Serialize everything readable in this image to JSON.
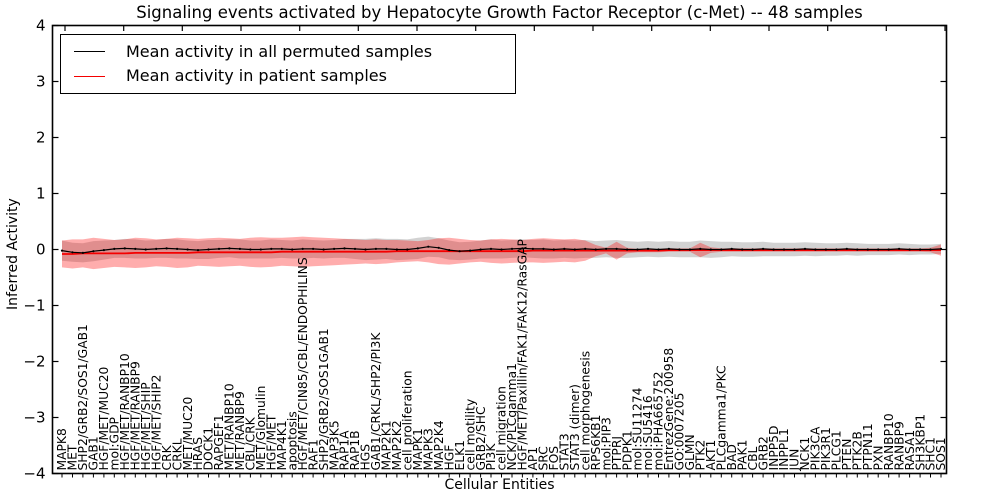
{
  "chart_data": {
    "type": "line",
    "title": "Signaling events activated by Hepatocyte Growth Factor Receptor (c-Met) -- 48 samples",
    "xlabel": "Cellular Entities",
    "ylabel": "Inferred Activity",
    "ylim": [
      -4,
      4
    ],
    "yticks": [
      4,
      3,
      2,
      1,
      0,
      -1,
      -2,
      -3,
      -4
    ],
    "grid": false,
    "legend_position": "upper left",
    "categories": [
      "MAPK8",
      "MET",
      "SHP2/GRB2/SOS1/GAB1",
      "GAB1",
      "HGF/MET/MUC20",
      "mol:GDP",
      "HGF/MET/RANBP10",
      "HGF/MET/RANBP9",
      "HGF/MET/SHIP",
      "HGF/MET/SHIP2",
      "CRK",
      "CRKL",
      "MET/MUC20",
      "HRAS",
      "DOCK1",
      "RAPGEF1",
      "MET/RANBP10",
      "MET/RANBP9",
      "CBL/CRK",
      "MET/Glomulin",
      "HGF/MET",
      "MAP4K1",
      "apoptosis",
      "HGF/MET/CIN85/CBL/ENDOPHILINS",
      "RAF1",
      "SHP2/GRB2/SOS1GAB1",
      "MAP3K5",
      "RAP1A",
      "RAP1B",
      "HGS",
      "GAB1/CRKL/SHP2/PI3K",
      "MAP2K1",
      "MAP2K2",
      "cell proliferation",
      "MAPK1",
      "MAPK3",
      "MAP2K4",
      "HGF",
      "ELK1",
      "cell motility",
      "GRB2/SHC",
      "PI3K",
      "cell migration",
      "NCK/PLCgamma1",
      "HGF/MET/Paxillin/FAK1/FAK12/RasGAP",
      "AP1",
      "SRC",
      "FOS",
      "STAT3",
      "STAT3 (dimer)",
      "cell morphogenesis",
      "RPS6KB1",
      "mol:PIP3",
      "PTPRJ",
      "PDPK1",
      "mol:SU11274",
      "mol:SU5416",
      "mol:PHA665752",
      "EntrezGene:200958",
      "GO:0007205",
      "GLMN",
      "PTK2",
      "AKT1",
      "PLCgamma1/PKC",
      "BAD",
      "PAK1",
      "CBL",
      "GRB2",
      "INPP5D",
      "INPPL1",
      "JUN",
      "NCK1",
      "PIK3CA",
      "PIK3R1",
      "PLCG1",
      "PTEN",
      "PTK2B",
      "PTPN11",
      "PXN",
      "RANBP10",
      "RANBP9",
      "RASA1",
      "SH3KBP1",
      "SHC1",
      "SOS1"
    ],
    "series": [
      {
        "name": "Mean activity in all permuted samples",
        "color": "#000000",
        "band_color": "#888888",
        "band_opacity": 0.38,
        "values": [
          -0.02,
          -0.05,
          -0.06,
          -0.03,
          -0.01,
          0.01,
          0.02,
          0.01,
          0,
          0.01,
          0.02,
          0.01,
          0,
          -0.01,
          0,
          0.01,
          0.02,
          0.01,
          0,
          0,
          0.01,
          0.01,
          0,
          0.01,
          0.01,
          0,
          0.01,
          0.02,
          0.01,
          0,
          0.01,
          0.01,
          0,
          0,
          0.02,
          0.05,
          0.03,
          -0.01,
          -0.03,
          -0.02,
          0,
          0.01,
          0,
          0.01,
          0.02,
          0.01,
          0.01,
          0,
          0.01,
          0,
          0.01,
          0,
          0.01,
          0.01,
          0,
          0,
          0.01,
          0,
          0.01,
          0,
          0,
          0.01,
          0,
          0,
          0.01,
          0,
          0,
          0.01,
          0,
          0,
          0,
          0.01,
          0,
          0,
          0,
          0.01,
          0,
          0,
          0,
          0,
          0.01,
          0,
          0,
          0,
          0.01
        ],
        "band": [
          0.18,
          0.17,
          0.17,
          0.18,
          0.17,
          0.16,
          0.17,
          0.17,
          0.16,
          0.16,
          0.17,
          0.17,
          0.16,
          0.16,
          0.17,
          0.16,
          0.16,
          0.17,
          0.16,
          0.16,
          0.17,
          0.16,
          0.16,
          0.17,
          0.16,
          0.16,
          0.16,
          0.17,
          0.18,
          0.19,
          0.19,
          0.18,
          0.19,
          0.18,
          0.19,
          0.18,
          0.17,
          0.17,
          0.16,
          0.16,
          0.16,
          0.17,
          0.16,
          0.16,
          0.16,
          0.16,
          0.17,
          0.16,
          0.16,
          0.16,
          0.16,
          0.15,
          0.15,
          0.16,
          0.15,
          0.14,
          0.14,
          0.14,
          0.14,
          0.14,
          0.14,
          0.15,
          0.15,
          0.14,
          0.13,
          0.13,
          0.13,
          0.13,
          0.12,
          0.12,
          0.12,
          0.12,
          0.12,
          0.11,
          0.11,
          0.11,
          0.11,
          0.1,
          0.1,
          0.1,
          0.1,
          0.1,
          0.09,
          0.09,
          0.09
        ]
      },
      {
        "name": "Mean activity in patient samples",
        "color": "#f40000",
        "band_color": "#ff0000",
        "band_opacity": 0.32,
        "values": [
          -0.08,
          -0.08,
          -0.07,
          -0.07,
          -0.07,
          -0.07,
          -0.07,
          -0.06,
          -0.06,
          -0.06,
          -0.06,
          -0.06,
          -0.06,
          -0.05,
          -0.05,
          -0.05,
          -0.05,
          -0.05,
          -0.05,
          -0.05,
          -0.05,
          -0.04,
          -0.04,
          -0.04,
          -0.04,
          -0.04,
          -0.04,
          -0.04,
          -0.04,
          -0.04,
          -0.04,
          -0.04,
          -0.03,
          -0.03,
          -0.03,
          -0.03,
          -0.03,
          -0.03,
          -0.03,
          -0.03,
          -0.03,
          -0.03,
          -0.03,
          -0.03,
          -0.03,
          -0.02,
          -0.02,
          -0.02,
          -0.02,
          -0.02,
          -0.02,
          -0.02,
          -0.02,
          -0.02,
          -0.02,
          -0.02,
          -0.02,
          -0.02,
          -0.01,
          -0.01,
          -0.01,
          -0.01,
          -0.01,
          -0.01,
          -0.01,
          -0.01,
          -0.01,
          -0.01,
          -0.01,
          -0.01,
          -0.01,
          -0.01,
          -0.01,
          -0.01,
          -0.01,
          -0.01,
          -0.01,
          -0.01,
          -0.01,
          -0.01,
          -0.01,
          -0.01,
          -0.01,
          -0.01,
          -0.01
        ],
        "band": [
          0.24,
          0.26,
          0.25,
          0.28,
          0.26,
          0.24,
          0.25,
          0.27,
          0.26,
          0.24,
          0.25,
          0.27,
          0.26,
          0.24,
          0.25,
          0.26,
          0.25,
          0.24,
          0.26,
          0.27,
          0.26,
          0.25,
          0.26,
          0.27,
          0.26,
          0.25,
          0.24,
          0.23,
          0.22,
          0.21,
          0.22,
          0.21,
          0.2,
          0.19,
          0.18,
          0.2,
          0.23,
          0.24,
          0.22,
          0.2,
          0.19,
          0.21,
          0.22,
          0.21,
          0.2,
          0.21,
          0.22,
          0.21,
          0.2,
          0.21,
          0.18,
          0.1,
          0.05,
          0.16,
          0.05,
          0.03,
          0.03,
          0.03,
          0.03,
          0.03,
          0.03,
          0.13,
          0.05,
          0.03,
          0.03,
          0.03,
          0.03,
          0.03,
          0.03,
          0.03,
          0.03,
          0.03,
          0.03,
          0.03,
          0.03,
          0.03,
          0.03,
          0.03,
          0.03,
          0.03,
          0.03,
          0.03,
          0.03,
          0.04,
          0.1
        ]
      }
    ]
  }
}
